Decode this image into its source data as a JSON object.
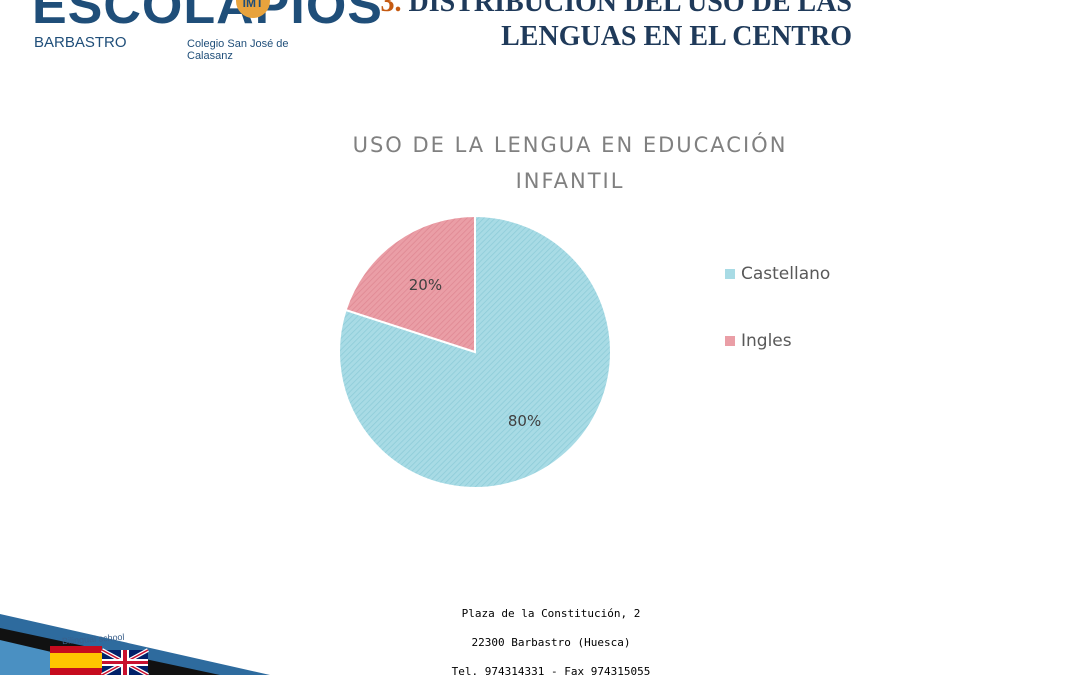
{
  "logo": {
    "wordmark": "ESCOLAPIOS",
    "badge": "IMT",
    "city": "BARBASTRO",
    "school": "Colegio San José de Calasanz"
  },
  "heading": {
    "number": "3.",
    "line1": "DISTRIBUCIÓN DEL USO DE LAS",
    "line2": "LENGUAS EN EL CENTRO"
  },
  "chart_data": {
    "type": "pie",
    "title": "USO DE LA LENGUA EN EDUCACIÓN INFANTIL",
    "title_line1": "USO DE LA LENGUA EN EDUCACIÓN",
    "title_line2": "INFANTIL",
    "categories": [
      "Castellano",
      "Ingles"
    ],
    "values": [
      80,
      20
    ],
    "labels": [
      "80%",
      "20%"
    ],
    "colors": [
      "#a8dbe5",
      "#ea9ea6"
    ],
    "legend_position": "right"
  },
  "footer": {
    "address": "Plaza de la Constitución, 2",
    "city": "22300 Barbastro (Huesca)",
    "phone": "Tel. 974314331 - Fax 974315055"
  },
  "corner": {
    "caption": "Bilingual school"
  }
}
